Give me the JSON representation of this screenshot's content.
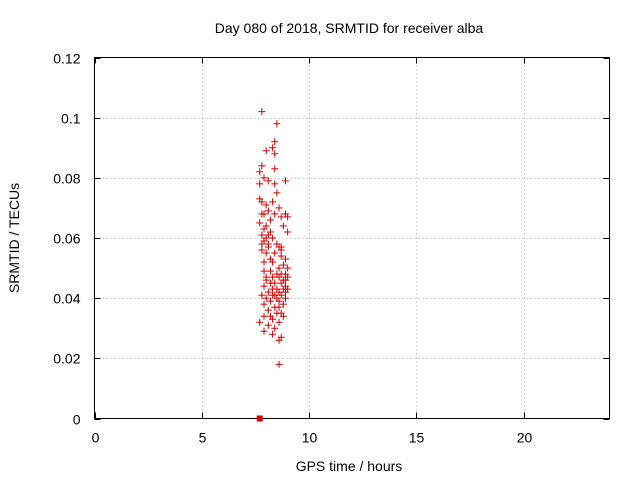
{
  "chart_data": {
    "type": "scatter",
    "title": "Day 080 of 2018, SRMTID for receiver alba",
    "xlabel": "GPS time / hours",
    "ylabel": "SRMTID / TECUs",
    "xlim": [
      0,
      24
    ],
    "ylim": [
      0,
      0.12
    ],
    "xticks": [
      0,
      5,
      10,
      15,
      20
    ],
    "yticks": [
      0,
      0.02,
      0.04,
      0.06,
      0.08,
      0.1,
      0.12
    ],
    "xtick_labels": [
      "0",
      "5",
      "10",
      "15",
      "20"
    ],
    "ytick_labels": [
      "0",
      "0.02",
      "0.04",
      "0.06",
      "0.08",
      "0.1",
      "0.12"
    ],
    "grid": true,
    "color": "#d40000",
    "marker": "+",
    "series": [
      {
        "name": "SRMTID",
        "points": [
          [
            7.8,
            0.102
          ],
          [
            8.5,
            0.098
          ],
          [
            8.4,
            0.092
          ],
          [
            8.3,
            0.09
          ],
          [
            8.4,
            0.088
          ],
          [
            8.0,
            0.089
          ],
          [
            7.8,
            0.084
          ],
          [
            7.7,
            0.082
          ],
          [
            8.4,
            0.083
          ],
          [
            8.9,
            0.079
          ],
          [
            7.9,
            0.08
          ],
          [
            7.7,
            0.078
          ],
          [
            8.1,
            0.079
          ],
          [
            8.4,
            0.078
          ],
          [
            8.5,
            0.075
          ],
          [
            7.7,
            0.073
          ],
          [
            7.8,
            0.072
          ],
          [
            8.0,
            0.071
          ],
          [
            8.3,
            0.072
          ],
          [
            8.6,
            0.07
          ],
          [
            8.1,
            0.069
          ],
          [
            7.8,
            0.068
          ],
          [
            7.9,
            0.068
          ],
          [
            8.4,
            0.068
          ],
          [
            8.9,
            0.068
          ],
          [
            8.7,
            0.067
          ],
          [
            9.0,
            0.067
          ],
          [
            8.2,
            0.066
          ],
          [
            7.7,
            0.065
          ],
          [
            8.0,
            0.064
          ],
          [
            8.8,
            0.064
          ],
          [
            7.9,
            0.063
          ],
          [
            8.2,
            0.062
          ],
          [
            9.0,
            0.062
          ],
          [
            7.8,
            0.061
          ],
          [
            8.1,
            0.061
          ],
          [
            8.3,
            0.06
          ],
          [
            8.0,
            0.06
          ],
          [
            7.9,
            0.059
          ],
          [
            7.8,
            0.058
          ],
          [
            8.5,
            0.058
          ],
          [
            8.6,
            0.057
          ],
          [
            8.7,
            0.057
          ],
          [
            8.1,
            0.057
          ],
          [
            7.8,
            0.056
          ],
          [
            8.0,
            0.055
          ],
          [
            8.4,
            0.055
          ],
          [
            8.7,
            0.054
          ],
          [
            8.9,
            0.053
          ],
          [
            8.2,
            0.053
          ],
          [
            7.9,
            0.052
          ],
          [
            8.3,
            0.052
          ],
          [
            8.8,
            0.051
          ],
          [
            8.6,
            0.05
          ],
          [
            9.0,
            0.05
          ],
          [
            7.9,
            0.049
          ],
          [
            8.2,
            0.049
          ],
          [
            8.5,
            0.048
          ],
          [
            8.7,
            0.048
          ],
          [
            8.9,
            0.048
          ],
          [
            8.3,
            0.047
          ],
          [
            8.6,
            0.047
          ],
          [
            9.0,
            0.047
          ],
          [
            8.0,
            0.046
          ],
          [
            8.8,
            0.046
          ],
          [
            8.2,
            0.045
          ],
          [
            8.4,
            0.045
          ],
          [
            8.7,
            0.045
          ],
          [
            8.9,
            0.044
          ],
          [
            7.9,
            0.044
          ],
          [
            8.5,
            0.043
          ],
          [
            8.8,
            0.043
          ],
          [
            9.0,
            0.043
          ],
          [
            8.1,
            0.042
          ],
          [
            8.6,
            0.042
          ],
          [
            8.9,
            0.042
          ],
          [
            7.8,
            0.041
          ],
          [
            8.3,
            0.041
          ],
          [
            8.7,
            0.041
          ],
          [
            8.0,
            0.04
          ],
          [
            8.5,
            0.04
          ],
          [
            8.9,
            0.04
          ],
          [
            8.2,
            0.039
          ],
          [
            8.6,
            0.039
          ],
          [
            8.8,
            0.038
          ],
          [
            7.9,
            0.038
          ],
          [
            8.4,
            0.037
          ],
          [
            8.6,
            0.037
          ],
          [
            8.1,
            0.036
          ],
          [
            8.5,
            0.035
          ],
          [
            8.7,
            0.035
          ],
          [
            8.2,
            0.034
          ],
          [
            8.8,
            0.034
          ],
          [
            7.9,
            0.034
          ],
          [
            8.3,
            0.033
          ],
          [
            8.6,
            0.032
          ],
          [
            7.7,
            0.032
          ],
          [
            8.1,
            0.031
          ],
          [
            8.4,
            0.03
          ],
          [
            7.9,
            0.029
          ],
          [
            8.3,
            0.028
          ],
          [
            8.7,
            0.027
          ],
          [
            8.6,
            0.026
          ],
          [
            8.6,
            0.018
          ],
          [
            8.0,
            0.047
          ],
          [
            8.4,
            0.041
          ],
          [
            8.9,
            0.046
          ],
          [
            8.1,
            0.058
          ],
          [
            8.3,
            0.043
          ],
          [
            8.7,
            0.056
          ]
        ]
      }
    ],
    "marker_points": [
      [
        7.7,
        0.0
      ]
    ]
  }
}
